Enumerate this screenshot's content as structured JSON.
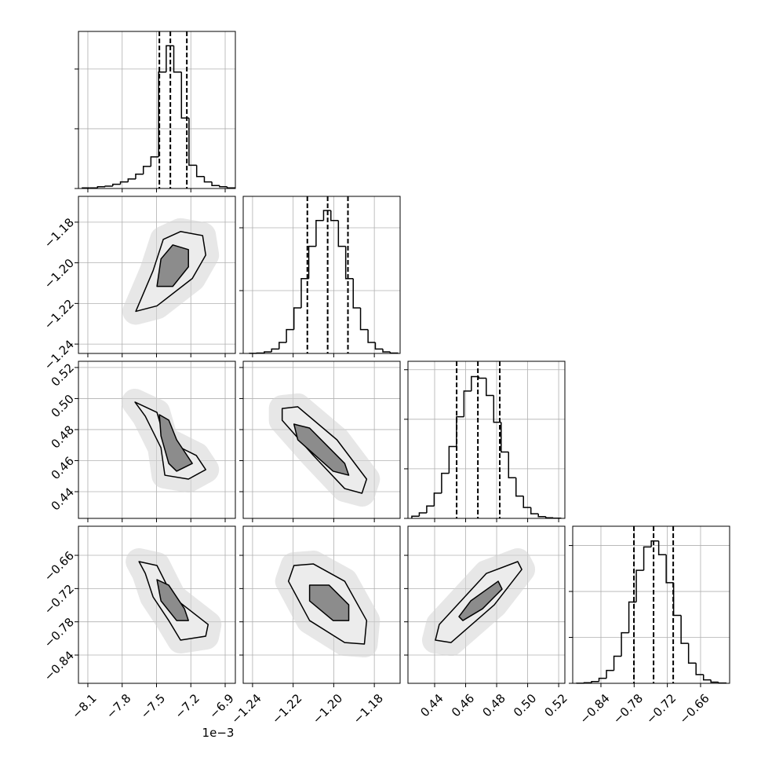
{
  "chart_data": {
    "type": "corner",
    "offset_text": "1e−3",
    "params": [
      {
        "xlim": [
          -8.182,
          -6.811
        ],
        "ticks": [
          {
            "value": -8.1,
            "label": "−8.1"
          },
          {
            "value": -7.8,
            "label": "−7.8"
          },
          {
            "value": -7.5,
            "label": "−7.5"
          },
          {
            "value": -7.2,
            "label": "−7.2"
          },
          {
            "value": -6.9,
            "label": "−6.9"
          }
        ],
        "hist": {
          "bins": [
            -8.148,
            -8.081,
            -8.015,
            -7.948,
            -7.882,
            -7.815,
            -7.748,
            -7.682,
            -7.615,
            -7.549,
            -7.482,
            -7.415,
            -7.349,
            -7.282,
            -7.216,
            -7.149,
            -7.082,
            -7.016,
            -6.949,
            -6.883,
            -6.816
          ],
          "values": [
            0.01,
            0.01,
            0.03,
            0.04,
            0.07,
            0.11,
            0.16,
            0.24,
            0.37,
            0.53,
            1.95,
            2.39,
            1.95,
            1.18,
            0.39,
            0.2,
            0.11,
            0.05,
            0.03,
            0.01
          ],
          "ylim": [
            0,
            2.63
          ],
          "yticks": [
            0,
            1,
            2
          ]
        },
        "quantiles": [
          -7.475,
          -7.379,
          -7.235
        ]
      },
      {
        "xlim": [
          -1.2446,
          -1.1673
        ],
        "ticks": [
          {
            "value": -1.24,
            "label": "−1.24"
          },
          {
            "value": -1.22,
            "label": "−1.22"
          },
          {
            "value": -1.2,
            "label": "−1.20"
          },
          {
            "value": -1.18,
            "label": "−1.18"
          }
        ],
        "hist": {
          "bins": [
            -1.2415,
            -1.2379,
            -1.2342,
            -1.2306,
            -1.2269,
            -1.2233,
            -1.2196,
            -1.216,
            -1.2123,
            -1.2087,
            -1.205,
            -1.2014,
            -1.1977,
            -1.1941,
            -1.1904,
            -1.1868,
            -1.1831,
            -1.1795,
            -1.1758,
            -1.1722,
            -1.1685
          ],
          "values": [
            0.003,
            0.014,
            0.05,
            0.14,
            0.35,
            0.76,
            1.45,
            2.38,
            3.41,
            4.23,
            4.55,
            4.23,
            3.41,
            2.38,
            1.45,
            0.76,
            0.35,
            0.14,
            0.05,
            0.014
          ],
          "ylim": [
            0,
            5
          ],
          "yticks": [
            0,
            2,
            4
          ]
        },
        "quantiles": [
          -1.213,
          -1.203,
          -1.193
        ]
      },
      {
        "xlim": [
          0.4228,
          0.524
        ],
        "ticks": [
          0.44,
          0.46,
          0.48,
          {
            "value": 0.5,
            "label": "0.50"
          },
          0.52
        ],
        "hist": {
          "bins": [
            0.4253,
            0.4301,
            0.4349,
            0.4397,
            0.4445,
            0.4493,
            0.4541,
            0.4589,
            0.4637,
            0.4685,
            0.4733,
            0.4781,
            0.4829,
            0.4877,
            0.4925,
            0.4973,
            0.5021,
            0.5069,
            0.5117,
            0.5165,
            0.5213
          ],
          "values": [
            0.043,
            0.11,
            0.25,
            0.51,
            0.91,
            1.45,
            2.05,
            2.57,
            2.86,
            2.83,
            2.48,
            1.94,
            1.34,
            0.82,
            0.45,
            0.22,
            0.093,
            0.035,
            0.012,
            0.004
          ],
          "ylim": [
            0,
            3.17
          ],
          "yticks": [
            0,
            1,
            2,
            3
          ]
        },
        "quantiles": [
          0.4542,
          0.4679,
          0.482
        ]
      },
      {
        "xlim": [
          -0.891,
          -0.6075
        ],
        "ticks": [
          {
            "value": -0.84,
            "label": "−0.84"
          },
          {
            "value": -0.78,
            "label": "−0.78"
          },
          {
            "value": -0.72,
            "label": "−0.72"
          },
          {
            "value": -0.66,
            "label": "−0.66"
          }
        ],
        "hist": {
          "bins": [
            -0.8839,
            -0.8704,
            -0.8569,
            -0.8435,
            -0.83,
            -0.8165,
            -0.803,
            -0.7895,
            -0.7761,
            -0.7626,
            -0.7491,
            -0.7356,
            -0.7221,
            -0.7087,
            -0.6952,
            -0.6817,
            -0.6682,
            -0.6547,
            -0.6413,
            -0.6278,
            -0.6143
          ],
          "values": [
            0.003,
            0.012,
            0.039,
            0.11,
            0.28,
            0.59,
            1.1,
            1.77,
            2.46,
            2.97,
            3.1,
            2.8,
            2.19,
            1.48,
            0.87,
            0.44,
            0.19,
            0.074,
            0.025,
            0.007
          ],
          "ylim": [
            0,
            3.42
          ],
          "yticks": [
            0,
            1,
            2,
            3
          ]
        },
        "quantiles": [
          -0.7804,
          -0.7449,
          -0.7094
        ]
      }
    ],
    "pairs": [
      {
        "contours": [
          {
            "x": [
              -7.681,
              -7.53,
              -7.441,
              -7.29,
              -7.097,
              -7.07,
              -7.187,
              -7.496
            ],
            "y": [
              -1.2239,
              -1.2039,
              -1.1885,
              -1.1846,
              -1.1866,
              -1.1962,
              -1.2077,
              -1.2212
            ]
          },
          {
            "x": [
              -7.496,
              -7.461,
              -7.358,
              -7.221,
              -7.221,
              -7.358
            ],
            "y": [
              -1.2116,
              -1.1981,
              -1.1912,
              -1.1935,
              -1.202,
              -1.2116
            ]
          }
        ]
      },
      {
        "contours": [
          {
            "x": [
              -7.688,
              -7.496,
              -7.427,
              -7.152,
              -7.07,
              -7.221,
              -7.427,
              -7.461,
              -7.598
            ],
            "y": [
              0.4977,
              0.4911,
              0.4734,
              0.4633,
              0.4542,
              0.4481,
              0.4506,
              0.4683,
              0.4886
            ]
          },
          {
            "x": [
              -7.475,
              -7.393,
              -7.324,
              -7.187,
              -7.324,
              -7.393,
              -7.461
            ],
            "y": [
              0.4896,
              0.4861,
              0.4734,
              0.4582,
              0.4532,
              0.4582,
              0.4759
            ]
          }
        ]
      },
      {
        "contours": [
          {
            "x": [
              -1.2254,
              -1.2177,
              -1.1984,
              -1.1838,
              -1.1861,
              -1.1946,
              -1.21,
              -1.2254
            ],
            "y": [
              0.4936,
              0.4947,
              0.4734,
              0.4481,
              0.439,
              0.442,
              0.4633,
              0.486
            ]
          },
          {
            "x": [
              -1.2196,
              -1.2119,
              -1.1946,
              -1.1926,
              -1.2003,
              -1.2177
            ],
            "y": [
              0.4835,
              0.481,
              0.4582,
              0.4506,
              0.4532,
              0.4734
            ]
          }
        ]
      },
      {
        "contours": [
          {
            "x": [
              -7.653,
              -7.496,
              -7.358,
              -7.049,
              -7.07,
              -7.29,
              -7.393,
              -7.53,
              -7.598
            ],
            "y": [
              -0.6713,
              -0.6784,
              -0.7351,
              -0.7848,
              -0.806,
              -0.8131,
              -0.7777,
              -0.7351,
              -0.6926
            ]
          },
          {
            "x": [
              -7.496,
              -7.393,
              -7.256,
              -7.221,
              -7.324,
              -7.461
            ],
            "y": [
              -0.7039,
              -0.7139,
              -0.7564,
              -0.7777,
              -0.7777,
              -0.7422
            ]
          }
        ]
      },
      {
        "contours": [
          {
            "x": [
              -1.2196,
              -1.21,
              -1.1946,
              -1.1838,
              -1.1849,
              -1.1946,
              -1.2119,
              -1.2223
            ],
            "y": [
              -0.6784,
              -0.6756,
              -0.7068,
              -0.7777,
              -0.8202,
              -0.8174,
              -0.7777,
              -0.7068
            ]
          },
          {
            "x": [
              -1.2119,
              -1.2023,
              -1.1926,
              -1.1926,
              -1.2003,
              -1.2119
            ],
            "y": [
              -0.7139,
              -0.7139,
              -0.7493,
              -0.7777,
              -0.7777,
              -0.7422
            ]
          }
        ]
      },
      {
        "contours": [
          {
            "x": [
              0.4405,
              0.443,
              0.4734,
              0.4936,
              0.4962,
              0.4785,
              0.4506
            ],
            "y": [
              -0.8131,
              -0.7848,
              -0.6926,
              -0.6713,
              -0.6855,
              -0.7493,
              -0.8174
            ]
          },
          {
            "x": [
              0.4557,
              0.4633,
              0.481,
              0.4835,
              0.4709,
              0.4582
            ],
            "y": [
              -0.7706,
              -0.7422,
              -0.7068,
              -0.721,
              -0.7564,
              -0.7777
            ]
          }
        ]
      }
    ]
  }
}
